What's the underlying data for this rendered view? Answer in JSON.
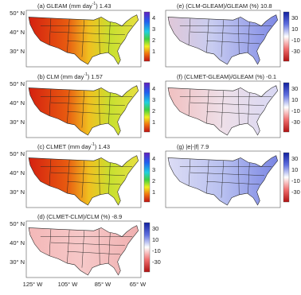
{
  "panels": [
    {
      "title": {
        "main": "(a) GLEAM (mm day",
        "sup": "-1",
        "rest": ") 1.43"
      },
      "colorbar": [
        "4",
        "3",
        "2",
        "1"
      ],
      "lat": [
        "50° N",
        "40° N",
        "30° N"
      ]
    },
    {
      "title": {
        "main": "(b) CLM (mm day",
        "sup": "-1",
        "rest": ") 1.57"
      },
      "colorbar": [
        "4",
        "3",
        "2",
        "1"
      ],
      "lat": [
        "50° N",
        "40° N",
        "30° N"
      ]
    },
    {
      "title": {
        "main": "(c) CLMET (mm day",
        "sup": "-1",
        "rest": ") 1.43"
      },
      "colorbar": [
        "4",
        "3",
        "2",
        "1"
      ],
      "lat": [
        "50° N",
        "40° N",
        "30° N"
      ]
    },
    {
      "title": {
        "main": "(d) (CLMET-CLM)/CLM (%) -8.9"
      },
      "colorbar": [
        "30",
        "10",
        "-10",
        "-30"
      ],
      "lat": [
        "50° N",
        "40° N",
        "30° N"
      ],
      "lon": [
        "125° W",
        "105° W",
        "85° W",
        "65° W"
      ]
    },
    {
      "title": {
        "main": "(e) (CLM-GLEAM)/GLEAM (%) 10.8"
      },
      "colorbar": [
        "30",
        "10",
        "-10",
        "-30"
      ]
    },
    {
      "title": {
        "main": "(f) (CLMET-GLEAM)/GLEAM (%) -0.1"
      },
      "colorbar": [
        "30",
        "10",
        "-10",
        "-30"
      ]
    },
    {
      "title": {
        "main": "(g) |e|-|f| 7.9"
      },
      "colorbar": [
        "30",
        "10",
        "-10",
        "-30"
      ]
    }
  ]
}
